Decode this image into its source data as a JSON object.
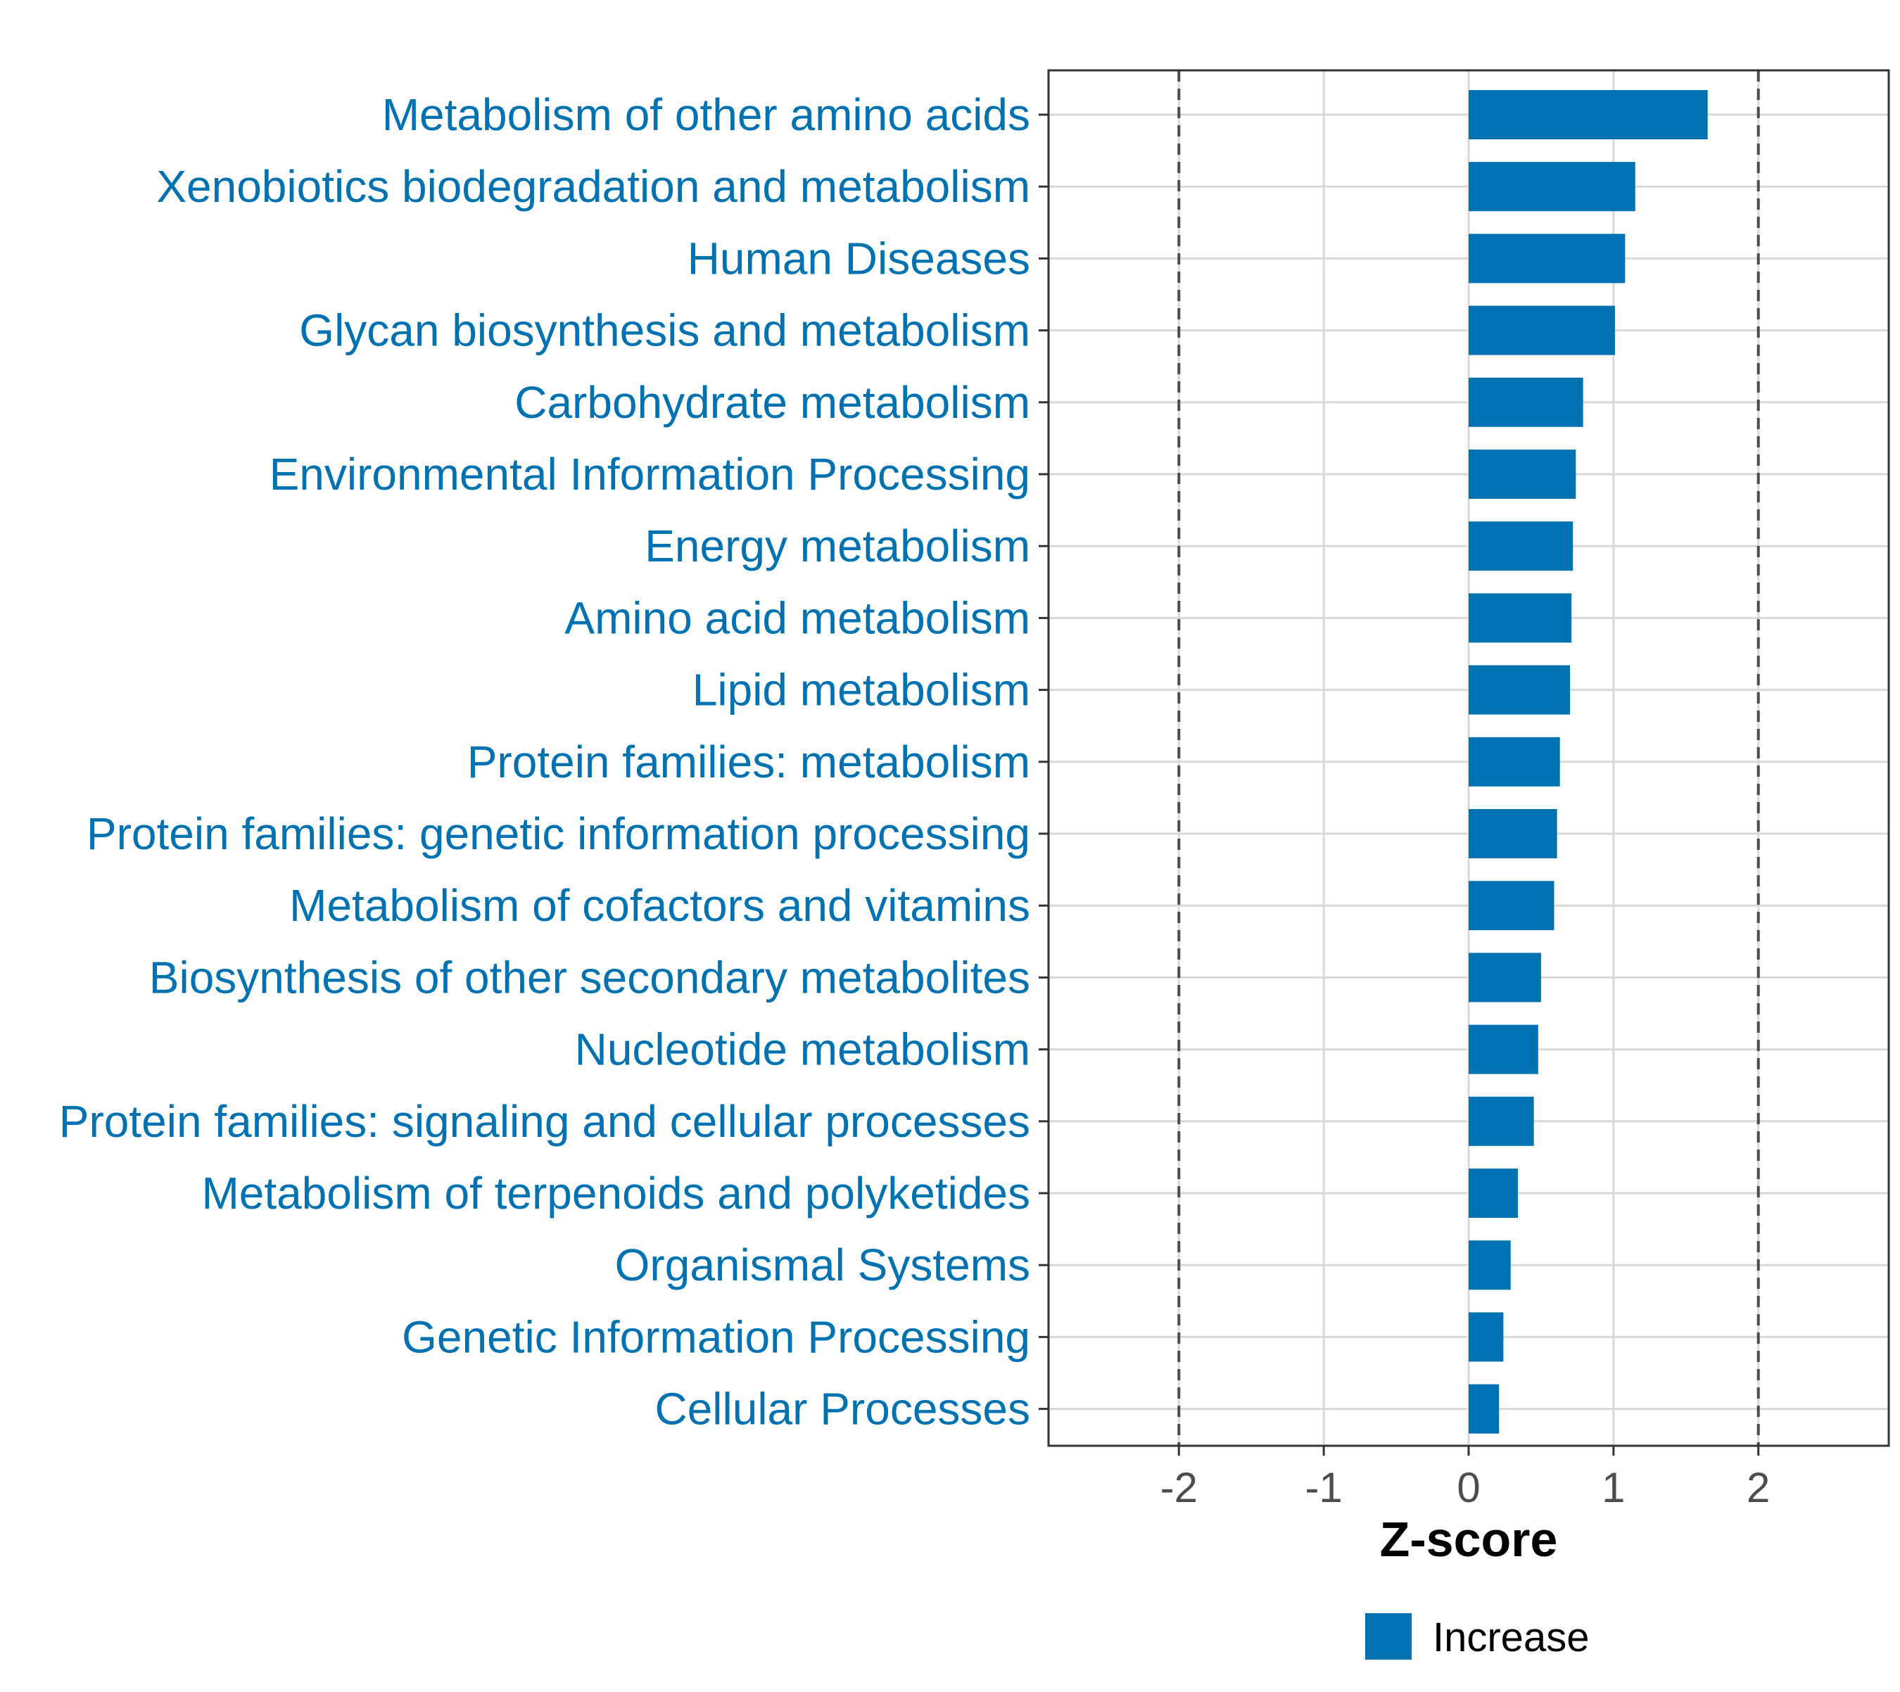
{
  "chart_data": {
    "type": "bar",
    "orientation": "horizontal",
    "title": "",
    "xlabel": "Z-score",
    "ylabel": "",
    "xlim": [
      -2.9,
      2.9
    ],
    "xticks": [
      -2,
      -1,
      0,
      1,
      2
    ],
    "xtick_labels": [
      "-2",
      "-1",
      "0",
      "1",
      "2"
    ],
    "reference_lines": [
      -2,
      2
    ],
    "grid": true,
    "legend_position": "bottom",
    "categories": [
      "Metabolism of other amino acids",
      "Xenobiotics biodegradation and metabolism",
      "Human Diseases",
      "Glycan biosynthesis and metabolism",
      "Carbohydrate metabolism",
      "Environmental Information Processing",
      "Energy metabolism",
      "Amino acid metabolism",
      "Lipid metabolism",
      "Protein families: metabolism",
      "Protein families: genetic information processing",
      "Metabolism of cofactors and vitamins",
      "Biosynthesis of other secondary metabolites",
      "Nucleotide metabolism",
      "Protein families: signaling and cellular processes",
      "Metabolism of terpenoids and polyketides",
      "Organismal Systems",
      "Genetic Information Processing",
      "Cellular Processes"
    ],
    "series": [
      {
        "name": "Increase",
        "color": "#0072b2",
        "values": [
          1.65,
          1.15,
          1.08,
          1.01,
          0.79,
          0.74,
          0.72,
          0.71,
          0.7,
          0.63,
          0.61,
          0.59,
          0.5,
          0.48,
          0.45,
          0.34,
          0.29,
          0.24,
          0.21
        ]
      }
    ]
  },
  "colors": {
    "bar": "#0072b2",
    "category_text": "#0072b2",
    "grid": "#d9d9d9",
    "reference_line": "#4d4d4d",
    "panel_border": "#333333",
    "tick_text": "#4d4d4d"
  }
}
